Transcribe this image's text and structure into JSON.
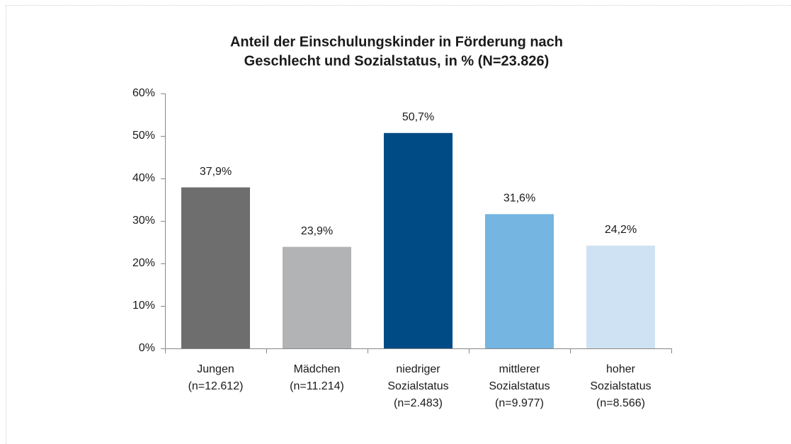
{
  "chart_data": {
    "type": "bar",
    "title": [
      "Anteil der Einschulungskinder in Förderung nach",
      "Geschlecht und Sozialstatus, in % (N=23.826)"
    ],
    "categories": [
      [
        "Jungen",
        "(n=12.612)"
      ],
      [
        "Mädchen",
        "(n=11.214)"
      ],
      [
        "niedriger",
        "Sozialstatus",
        "(n=2.483)"
      ],
      [
        "mittlerer",
        "Sozialstatus",
        "(n=9.977)"
      ],
      [
        "hoher",
        "Sozialstatus",
        "(n=8.566)"
      ]
    ],
    "values": [
      37.9,
      23.9,
      50.7,
      31.6,
      24.2
    ],
    "value_labels": [
      "37,9%",
      "23,9%",
      "50,7%",
      "31,6%",
      "24,2%"
    ],
    "colors": [
      "#6d6e6d",
      "#b1b3b4",
      "#004b85",
      "#74b5e2",
      "#cfe2f3"
    ],
    "ylim": [
      0,
      60
    ],
    "yticks": [
      {
        "value": 0,
        "label": "0%"
      },
      {
        "value": 10,
        "label": "10%"
      },
      {
        "value": 20,
        "label": "20%"
      },
      {
        "value": 30,
        "label": "30%"
      },
      {
        "value": 40,
        "label": "40%"
      },
      {
        "value": 50,
        "label": "50%"
      },
      {
        "value": 60,
        "label": "60%"
      }
    ],
    "grid": false
  }
}
